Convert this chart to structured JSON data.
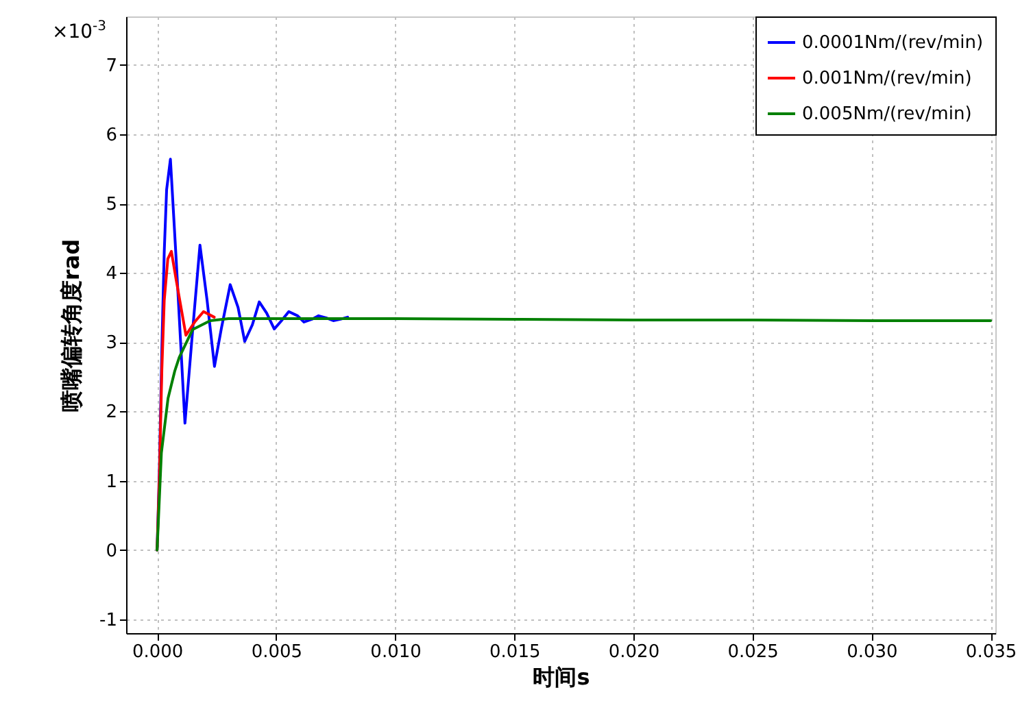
{
  "chart_data": {
    "type": "line",
    "xlabel": "时间s",
    "ylabel": "喷嘴偏转角度rad",
    "annotations": [
      "×10$^{-3}$"
    ],
    "xlim": [
      -0.0013,
      0.0352
    ],
    "ylim": [
      -1.2,
      7.7
    ],
    "xticks": [
      {
        "value": 0,
        "label": "0.000"
      },
      {
        "value": 0.005,
        "label": "0.005"
      },
      {
        "value": 0.01,
        "label": "0.010"
      },
      {
        "value": 0.015,
        "label": "0.015"
      },
      {
        "value": 0.02,
        "label": "0.020"
      },
      {
        "value": 0.025,
        "label": "0.025"
      },
      {
        "value": 0.03,
        "label": "0.030"
      },
      {
        "value": 0.035,
        "label": "0.035"
      }
    ],
    "yticks": [
      -1,
      0,
      1,
      2,
      3,
      4,
      5,
      6,
      7
    ],
    "grid": true,
    "legend": "top right",
    "marker": "none",
    "line_style": "solid",
    "series": [
      {
        "name": "0.0001Nm/(rev/min)",
        "color": "#0000ff",
        "x": [
          0,
          0.0001,
          0.0002,
          0.0003,
          0.0004,
          0.00056,
          0.0008,
          0.00117,
          0.0015,
          0.0018,
          0.0021,
          0.00241,
          0.0027,
          0.00307,
          0.0034,
          0.00368,
          0.004,
          0.00429,
          0.0046,
          0.00492,
          0.0052,
          0.00553,
          0.0059,
          0.00617,
          0.0065,
          0.00678,
          0.0071,
          0.0074,
          0.0077,
          0.008
        ],
        "values": [
          0,
          1.2,
          2.9,
          4.3,
          5.2,
          5.64,
          4.2,
          1.83,
          3.2,
          4.4,
          3.6,
          2.65,
          3.2,
          3.83,
          3.5,
          3.01,
          3.25,
          3.58,
          3.42,
          3.19,
          3.3,
          3.44,
          3.38,
          3.29,
          3.33,
          3.38,
          3.35,
          3.31,
          3.33,
          3.36
        ]
      },
      {
        "name": "0.001Nm/(rev/min)",
        "color": "#ff0000",
        "x": [
          0,
          0.0001,
          0.0002,
          0.0003,
          0.00045,
          0.0006,
          0.0008,
          0.00121,
          0.0016,
          0.00195,
          0.0024
        ],
        "values": [
          0,
          1.1,
          2.6,
          3.6,
          4.2,
          4.31,
          3.9,
          3.1,
          3.3,
          3.44,
          3.36
        ]
      },
      {
        "name": "0.005Nm/(rev/min)",
        "color": "#008000",
        "x": [
          0,
          0.00018,
          0.00046,
          0.00074,
          0.00093,
          0.00149,
          0.00223,
          0.003,
          0.004,
          0.005,
          0.01,
          0.015,
          0.02,
          0.025,
          0.03,
          0.035
        ],
        "values": [
          0,
          1.4,
          2.19,
          2.58,
          2.78,
          3.18,
          3.31,
          3.34,
          3.34,
          3.34,
          3.34,
          3.33,
          3.32,
          3.32,
          3.31,
          3.31
        ]
      }
    ]
  }
}
